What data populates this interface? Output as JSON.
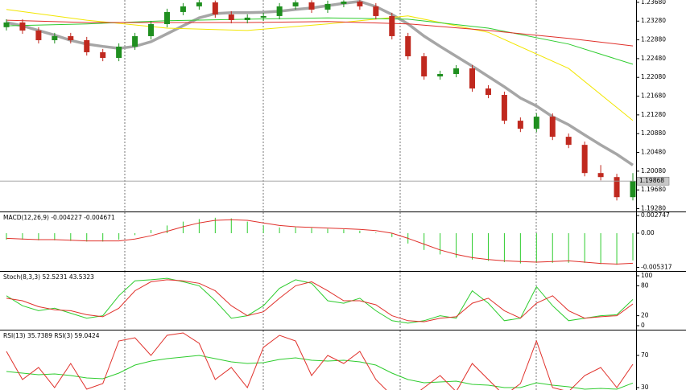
{
  "chart_data": [
    {
      "type": "candlestick",
      "open": [
        1.2315,
        1.23251,
        1.23079,
        1.22873,
        1.22959,
        1.22873,
        1.22616,
        1.22495,
        1.22736,
        1.22959,
        1.23216,
        1.23474,
        1.23594,
        1.2368,
        1.23422,
        1.23302,
        1.23354,
        1.23388,
        1.23594,
        1.2368,
        1.23525,
        1.23646,
        1.23697,
        1.23594,
        1.23388,
        1.22959,
        1.2253,
        1.221,
        1.22152,
        1.22272,
        1.21843,
        1.21706,
        1.21156,
        1.20984,
        1.21242,
        1.20813,
        1.20641,
        1.2004,
        1.19954,
        1.19525
      ],
      "high": [
        1.23321,
        1.23321,
        1.23149,
        1.23029,
        1.23029,
        1.22943,
        1.22686,
        1.22806,
        1.23029,
        1.23286,
        1.23544,
        1.23664,
        1.2373,
        1.2372,
        1.23492,
        1.23424,
        1.23458,
        1.23664,
        1.23725,
        1.23725,
        1.23716,
        1.23725,
        1.23725,
        1.23664,
        1.23458,
        1.23029,
        1.226,
        1.22222,
        1.22342,
        1.22342,
        1.21913,
        1.21776,
        1.21226,
        1.21312,
        1.21312,
        1.20883,
        1.20711,
        1.2021,
        1.20024,
        1.20038
      ],
      "low": [
        1.2308,
        1.23009,
        1.22803,
        1.22803,
        1.22803,
        1.22546,
        1.22425,
        1.22425,
        1.22666,
        1.22889,
        1.23146,
        1.23404,
        1.23524,
        1.23352,
        1.23232,
        1.23232,
        1.23284,
        1.23318,
        1.23524,
        1.23455,
        1.23455,
        1.23576,
        1.23524,
        1.23318,
        1.22889,
        1.2246,
        1.2203,
        1.2203,
        1.22082,
        1.21773,
        1.21636,
        1.21086,
        1.20914,
        1.20914,
        1.20743,
        1.20571,
        1.1997,
        1.19884,
        1.19455,
        1.19455
      ],
      "close": [
        1.23251,
        1.23079,
        1.22873,
        1.22959,
        1.22873,
        1.22616,
        1.22495,
        1.22736,
        1.22959,
        1.23216,
        1.23474,
        1.23594,
        1.2368,
        1.23422,
        1.23302,
        1.23354,
        1.23388,
        1.23594,
        1.2368,
        1.23525,
        1.23646,
        1.23697,
        1.23594,
        1.23388,
        1.22959,
        1.2253,
        1.221,
        1.22152,
        1.22272,
        1.21843,
        1.21706,
        1.21156,
        1.20984,
        1.21242,
        1.20813,
        1.20641,
        1.2004,
        1.19954,
        1.19525,
        1.19868
      ],
      "up_color": "#1f8f1f",
      "down_color": "#c0291f",
      "series": [
        {
          "color": "#a6a6a6",
          "x": [
            0,
            1,
            2,
            3,
            4,
            5,
            6,
            7,
            8,
            9,
            10,
            11,
            12,
            13,
            14,
            15,
            16,
            17,
            18,
            19,
            20,
            21,
            22,
            23,
            24,
            25,
            26,
            27,
            28,
            29,
            30,
            31,
            32,
            33,
            34,
            35,
            36,
            37,
            38,
            39
          ],
          "values": [
            1.2325,
            1.2318,
            1.2308,
            1.2298,
            1.2287,
            1.2279,
            1.2274,
            1.227,
            1.2274,
            1.2284,
            1.2301,
            1.2318,
            1.2335,
            1.2344,
            1.2346,
            1.2346,
            1.2347,
            1.2349,
            1.2353,
            1.2356,
            1.2361,
            1.2366,
            1.237,
            1.2359,
            1.2342,
            1.2322,
            1.2296,
            1.2274,
            1.2253,
            1.2232,
            1.221,
            1.2188,
            1.2164,
            1.2147,
            1.2124,
            1.2107,
            1.2085,
            1.2064,
            1.2044,
            1.2021
          ]
        },
        {
          "color": "#f2e600",
          "x": [
            0,
            5,
            10,
            15,
            20,
            25,
            30,
            35,
            39
          ],
          "values": [
            1.2353,
            1.233,
            1.2313,
            1.2308,
            1.2322,
            1.2339,
            1.2304,
            1.2227,
            1.2116
          ]
        },
        {
          "color": "#2ecc2e",
          "x": [
            0,
            5,
            10,
            15,
            20,
            25,
            30,
            35,
            39
          ],
          "values": [
            1.2318,
            1.2322,
            1.2329,
            1.2332,
            1.2335,
            1.2332,
            1.2313,
            1.2279,
            1.2236
          ]
        },
        {
          "color": "#e0302a",
          "x": [
            0,
            5,
            10,
            15,
            20,
            25,
            30,
            35,
            39
          ],
          "values": [
            1.233,
            1.2325,
            1.2325,
            1.2325,
            1.2327,
            1.2322,
            1.2308,
            1.2291,
            1.2275
          ]
        }
      ],
      "current_price": {
        "value": 1.19868,
        "label": "1.19868"
      },
      "ylim": [
        1.1922,
        1.2373
      ],
      "yticks": [
        {
          "value": 1.2368,
          "label": "1.23680"
        },
        {
          "value": 1.2328,
          "label": "1.23280"
        },
        {
          "value": 1.2288,
          "label": "1.22880"
        },
        {
          "value": 1.2248,
          "label": "1.22480"
        },
        {
          "value": 1.2208,
          "label": "1.22080"
        },
        {
          "value": 1.2168,
          "label": "1.21680"
        },
        {
          "value": 1.2128,
          "label": "1.21280"
        },
        {
          "value": 1.2088,
          "label": "1.20880"
        },
        {
          "value": 1.2048,
          "label": "1.20480"
        },
        {
          "value": 1.2008,
          "label": "1.20080"
        },
        {
          "value": 1.1968,
          "label": "1.19680"
        },
        {
          "value": 1.1928,
          "label": "1.19280"
        }
      ]
    },
    {
      "type": "macd",
      "title": "MACD(12,26,9) -0.004227 -0.004671",
      "series": [
        {
          "color": "#2ecc2e",
          "values": [
            -0.001,
            -0.001,
            -0.0011,
            -0.0011,
            -0.0012,
            -0.0013,
            -0.0013,
            -0.001,
            -0.0003,
            0.0005,
            0.0012,
            0.0018,
            0.0022,
            0.0024,
            0.0023,
            0.0018,
            0.0012,
            0.0009,
            0.0009,
            0.0008,
            0.0007,
            0.0006,
            0.0004,
            0.0001,
            -0.0006,
            -0.0016,
            -0.0026,
            -0.0033,
            -0.0038,
            -0.0041,
            -0.0043,
            -0.0045,
            -0.0047,
            -0.0046,
            -0.0046,
            -0.0046,
            -0.0046,
            -0.0048,
            -0.0049,
            -0.004227
          ]
        },
        {
          "color": "#e0302a",
          "values": [
            -0.0008,
            -0.0009,
            -0.001,
            -0.001,
            -0.0011,
            -0.0012,
            -0.0012,
            -0.0012,
            -0.0009,
            -0.0004,
            0.0003,
            0.001,
            0.0016,
            0.002,
            0.0021,
            0.002,
            0.0016,
            0.0012,
            0.001,
            0.0009,
            0.0008,
            0.0007,
            0.0006,
            0.0004,
            0,
            -0.0008,
            -0.0017,
            -0.0026,
            -0.0033,
            -0.0038,
            -0.0041,
            -0.0043,
            -0.0044,
            -0.0045,
            -0.0044,
            -0.0043,
            -0.0045,
            -0.0047,
            -0.0048,
            -0.004671
          ]
        }
      ],
      "ylim": [
        -0.00587,
        0.00325
      ],
      "yticks": [
        0.002747,
        {
          "value": 0,
          "label": "0.00"
        },
        -0.005317
      ]
    },
    {
      "type": "line",
      "title": "Stoch(8,3,3) 52.5231 43.5323",
      "series": [
        {
          "color": "#2ecc2e",
          "values": [
            60,
            40,
            30,
            35,
            25,
            15,
            20,
            60,
            90,
            92,
            95,
            88,
            80,
            50,
            15,
            20,
            40,
            75,
            92,
            85,
            50,
            45,
            55,
            30,
            10,
            5,
            10,
            20,
            15,
            70,
            45,
            10,
            15,
            78,
            40,
            10,
            15,
            20,
            22,
            52.5231
          ]
        },
        {
          "color": "#e0302a",
          "values": [
            55,
            50,
            38,
            32,
            30,
            22,
            18,
            35,
            70,
            88,
            92,
            90,
            85,
            70,
            40,
            20,
            28,
            55,
            80,
            88,
            70,
            50,
            50,
            42,
            20,
            10,
            8,
            15,
            18,
            45,
            55,
            30,
            15,
            45,
            60,
            30,
            15,
            18,
            20,
            43.5323
          ]
        }
      ],
      "ylim": [
        -8,
        108
      ],
      "yticks": [
        100,
        80,
        20,
        0
      ]
    },
    {
      "type": "line",
      "title": "RSI(13) 35.7389 RSI(3) 59.0424",
      "series": [
        {
          "color": "#2ecc2e",
          "values": [
            50,
            48,
            46,
            47,
            45,
            42,
            41,
            48,
            58,
            63,
            66,
            68,
            70,
            66,
            62,
            60,
            61,
            65,
            67,
            64,
            63,
            64,
            62,
            58,
            48,
            40,
            36,
            37,
            38,
            34,
            33,
            30,
            30,
            36,
            33,
            31,
            28,
            29,
            28,
            35.7389
          ]
        },
        {
          "color": "#e0302a",
          "values": [
            75,
            40,
            55,
            30,
            60,
            28,
            35,
            88,
            92,
            70,
            95,
            98,
            85,
            40,
            55,
            30,
            80,
            95,
            88,
            45,
            70,
            60,
            75,
            40,
            20,
            15,
            30,
            45,
            25,
            60,
            40,
            20,
            35,
            88,
            30,
            25,
            45,
            55,
            30,
            59.0424
          ]
        }
      ],
      "ylim": [
        27,
        101
      ],
      "yticks": [
        70,
        30
      ]
    }
  ]
}
